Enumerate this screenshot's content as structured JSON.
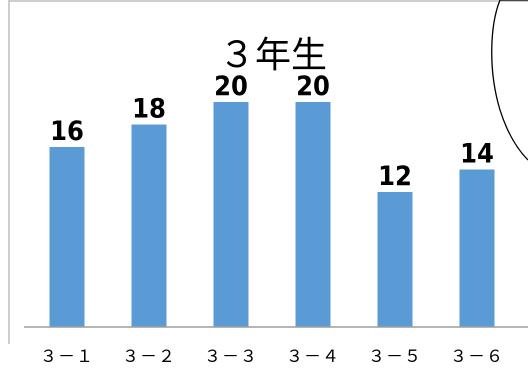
{
  "chart_data": {
    "type": "bar",
    "title": "３年生",
    "categories": [
      "３－１",
      "３－２",
      "３－３",
      "３－４",
      "３－５",
      "３－６"
    ],
    "values": [
      16,
      18,
      20,
      20,
      12,
      14
    ],
    "data_labels": [
      "16",
      "18",
      "20",
      "20",
      "12",
      "14"
    ],
    "xlabel": "",
    "ylabel": "",
    "ylim": [
      0,
      24
    ],
    "grid": false,
    "legend": "none",
    "bar_color": "#5b9bd5",
    "axis_color": "#9e9e9e"
  }
}
